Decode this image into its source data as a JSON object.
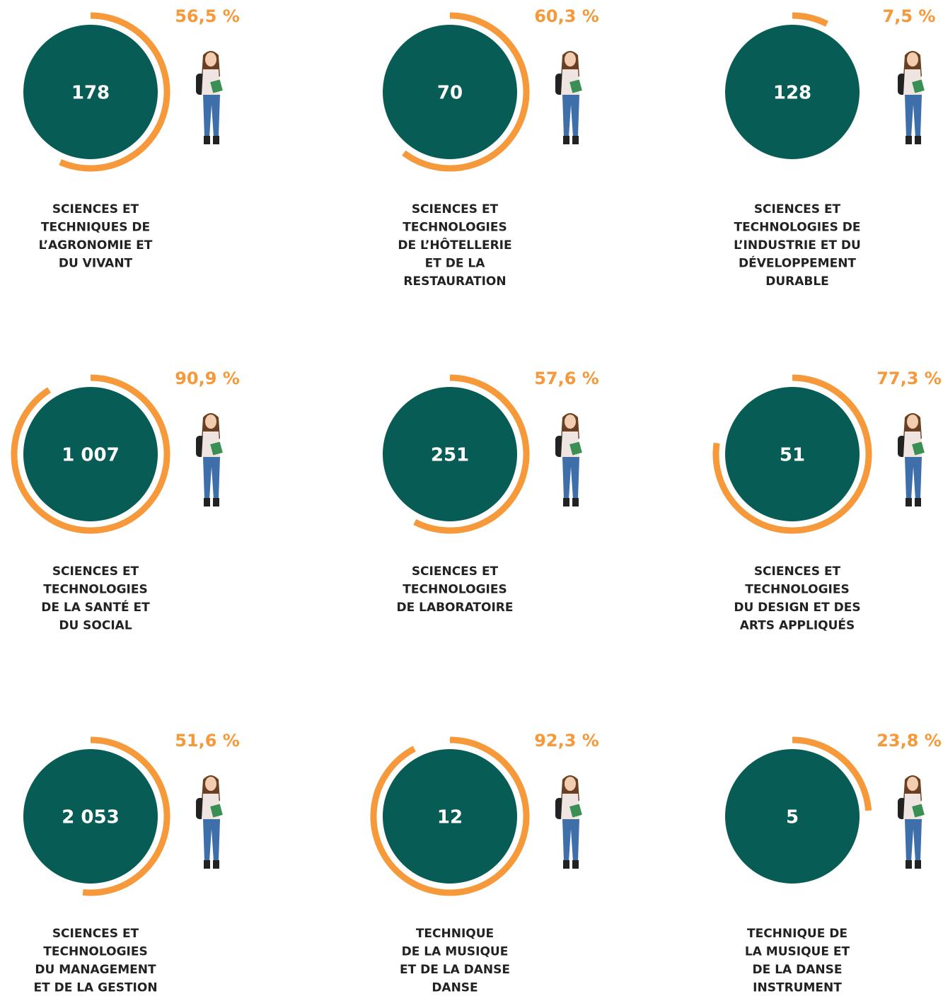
{
  "chart_data": [
    {
      "type": "radial",
      "title": "SCIENCES ET\nTECHNIQUES DE\nL’AGRONOMIE ET\nDU VIVANT",
      "count": 178,
      "values": [
        56.5
      ],
      "value_labels": [
        "56,5 %"
      ],
      "ylim": [
        0,
        100
      ]
    },
    {
      "type": "radial",
      "title": "SCIENCES ET\nTECHNOLOGIES\nDE L’HÔTELLERIE\nET DE LA\nRESTAURATION",
      "count": 70,
      "values": [
        60.3
      ],
      "value_labels": [
        "60,3 %"
      ],
      "ylim": [
        0,
        100
      ]
    },
    {
      "type": "radial",
      "title": "SCIENCES ET\nTECHNOLOGIES DE\nL’INDUSTRIE ET DU\nDÉVELOPPEMENT\nDURABLE",
      "count": 128,
      "values": [
        7.5
      ],
      "value_labels": [
        "7,5 %"
      ],
      "ylim": [
        0,
        100
      ]
    },
    {
      "type": "radial",
      "title": "SCIENCES ET\nTECHNOLOGIES\nDE LA SANTÉ ET\nDU SOCIAL",
      "count": {
        "value": 1007,
        "label": "1 007"
      },
      "values": [
        90.9
      ],
      "value_labels": [
        "90,9 %"
      ],
      "ylim": [
        0,
        100
      ]
    },
    {
      "type": "radial",
      "title": "SCIENCES ET\nTECHNOLOGIES\nDE LABORATOIRE",
      "count": 251,
      "values": [
        57.6
      ],
      "value_labels": [
        "57,6 %"
      ],
      "ylim": [
        0,
        100
      ]
    },
    {
      "type": "radial",
      "title": "SCIENCES ET\nTECHNOLOGIES\nDU DESIGN ET DES\nARTS APPLIQUÉS",
      "count": 51,
      "values": [
        77.3
      ],
      "value_labels": [
        "77,3 %"
      ],
      "ylim": [
        0,
        100
      ]
    },
    {
      "type": "radial",
      "title": "SCIENCES ET\nTECHNOLOGIES\nDU MANAGEMENT\nET DE LA GESTION",
      "count": {
        "value": 2053,
        "label": "2 053"
      },
      "values": [
        51.6
      ],
      "value_labels": [
        "51,6 %"
      ],
      "ylim": [
        0,
        100
      ]
    },
    {
      "type": "radial",
      "title": "TECHNIQUE\nDE LA MUSIQUE\nET DE LA DANSE\nDANSE",
      "count": 12,
      "values": [
        92.3
      ],
      "value_labels": [
        "92,3 %"
      ],
      "ylim": [
        0,
        100
      ]
    },
    {
      "type": "radial",
      "title": "TECHNIQUE DE\nLA MUSIQUE ET\nDE LA DANSE\nINSTRUMENT",
      "count": 5,
      "values": [
        23.8
      ],
      "value_labels": [
        "23,8 %"
      ],
      "ylim": [
        0,
        100
      ]
    }
  ]
}
